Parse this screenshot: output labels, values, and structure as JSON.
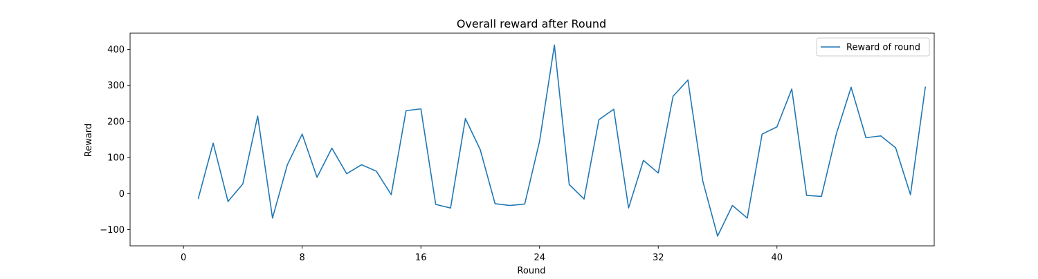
{
  "chart_data": {
    "type": "line",
    "title": "Overall reward after Round",
    "xlabel": "Round",
    "ylabel": "Reward",
    "xlim": [
      -3.6,
      50.6
    ],
    "ylim": [
      -145,
      445
    ],
    "xticks": [
      0,
      8,
      16,
      24,
      32,
      40
    ],
    "xtick_labels": [
      "0",
      "8",
      "16",
      "24",
      "32",
      "40"
    ],
    "yticks": [
      -100,
      0,
      100,
      200,
      300,
      400
    ],
    "ytick_labels": [
      "−100",
      "0",
      "100",
      "200",
      "300",
      "400"
    ],
    "grid": false,
    "legend_position": "top-right",
    "series": [
      {
        "name": "Reward of round",
        "color": "#1f77b4",
        "x": [
          1,
          2,
          3,
          4,
          5,
          6,
          7,
          8,
          9,
          10,
          11,
          12,
          13,
          14,
          15,
          16,
          17,
          18,
          19,
          20,
          21,
          22,
          23,
          24,
          25,
          26,
          27,
          28,
          29,
          30,
          31,
          32,
          33,
          34,
          35,
          36,
          37,
          38,
          39,
          40,
          41,
          42,
          43,
          44,
          45,
          46,
          47,
          48,
          49,
          50
        ],
        "values": [
          -13,
          140,
          -22,
          27,
          215,
          -68,
          80,
          165,
          45,
          126,
          55,
          80,
          62,
          -3,
          230,
          235,
          -30,
          -40,
          208,
          122,
          -28,
          -33,
          -29,
          145,
          412,
          25,
          -15,
          205,
          234,
          -40,
          92,
          57,
          270,
          315,
          35,
          -118,
          -33,
          -68,
          165,
          185,
          290,
          -5,
          -8,
          165,
          295,
          155,
          160,
          127,
          -3,
          295
        ]
      }
    ]
  }
}
